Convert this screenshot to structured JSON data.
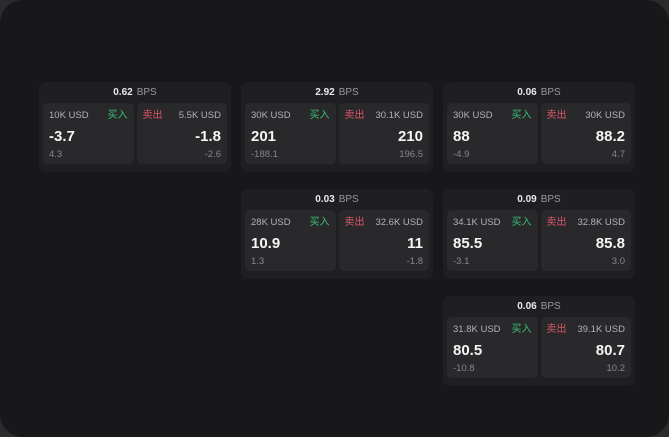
{
  "labels": {
    "bps_unit": "BPS",
    "buy": "买入",
    "sell": "卖出"
  },
  "colors": {
    "buy": "#3bbf75",
    "sell": "#dd5666",
    "page": "#18181a",
    "card": "#1f1f22",
    "panel": "#29292c"
  },
  "cards": [
    {
      "bps": "0.62",
      "row": 1,
      "col": 1,
      "buy": {
        "size": "10K USD",
        "value": "-3.7",
        "delta": "4.3"
      },
      "sell": {
        "size": "5.5K USD",
        "value": "-1.8",
        "delta": "-2.6"
      }
    },
    {
      "bps": "2.92",
      "row": 1,
      "col": 2,
      "buy": {
        "size": "30K USD",
        "value": "201",
        "delta": "-188.1"
      },
      "sell": {
        "size": "30.1K USD",
        "value": "210",
        "delta": "196.5"
      }
    },
    {
      "bps": "0.06",
      "row": 1,
      "col": 3,
      "buy": {
        "size": "30K USD",
        "value": "88",
        "delta": "-4.9"
      },
      "sell": {
        "size": "30K USD",
        "value": "88.2",
        "delta": "4.7"
      }
    },
    {
      "bps": "0.03",
      "row": 2,
      "col": 2,
      "buy": {
        "size": "28K USD",
        "value": "10.9",
        "delta": "1.3"
      },
      "sell": {
        "size": "32.6K USD",
        "value": "11",
        "delta": "-1.8"
      }
    },
    {
      "bps": "0.09",
      "row": 2,
      "col": 3,
      "buy": {
        "size": "34.1K USD",
        "value": "85.5",
        "delta": "-3.1"
      },
      "sell": {
        "size": "32.8K USD",
        "value": "85.8",
        "delta": "3.0"
      }
    },
    {
      "bps": "0.06",
      "row": 3,
      "col": 3,
      "buy": {
        "size": "31.8K USD",
        "value": "80.5",
        "delta": "-10.8"
      },
      "sell": {
        "size": "39.1K USD",
        "value": "80.7",
        "delta": "10.2"
      }
    }
  ]
}
